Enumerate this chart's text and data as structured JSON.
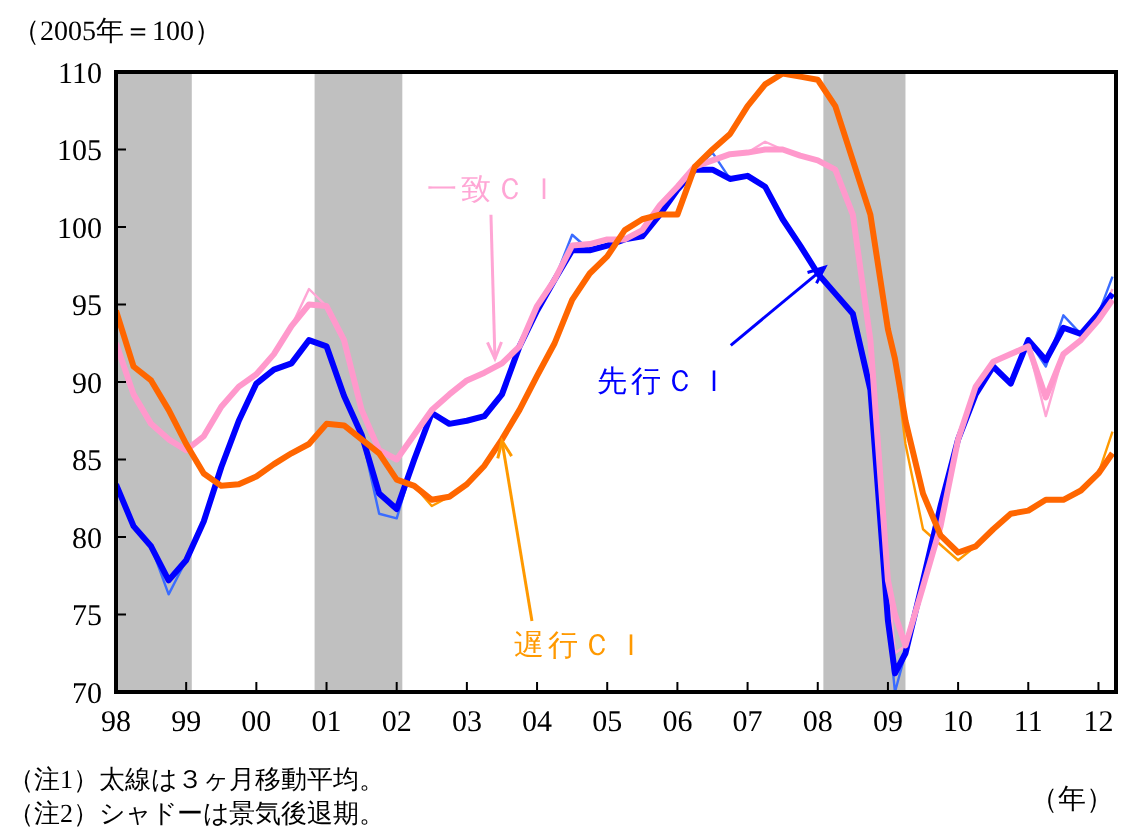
{
  "chart_data": {
    "type": "line",
    "ylabel": "（2005年＝100）",
    "xlabel": "（年）",
    "x": [
      1998,
      1998.25,
      1998.5,
      1998.75,
      1999,
      1999.25,
      1999.5,
      1999.75,
      2000,
      2000.25,
      2000.5,
      2000.75,
      2001,
      2001.25,
      2001.5,
      2001.75,
      2002,
      2002.25,
      2002.5,
      2002.75,
      2003,
      2003.25,
      2003.5,
      2003.75,
      2004,
      2004.25,
      2004.5,
      2004.75,
      2005,
      2005.25,
      2005.5,
      2005.75,
      2006,
      2006.25,
      2006.5,
      2006.75,
      2007,
      2007.25,
      2007.5,
      2007.75,
      2008,
      2008.25,
      2008.5,
      2008.75,
      2009,
      2009.1,
      2009.25,
      2009.5,
      2009.75,
      2010,
      2010.25,
      2010.5,
      2010.75,
      2011,
      2011.25,
      2011.5,
      2011.75,
      2012,
      2012.2
    ],
    "series": [
      {
        "color": "#0000ff",
        "values": [
          83.4,
          80.7,
          79.4,
          77.2,
          78.5,
          81,
          84.5,
          87.5,
          89.9,
          90.8,
          91.2,
          92.7,
          92.3,
          89.1,
          86.6,
          82.8,
          81.8,
          85,
          88,
          87.3,
          87.5,
          87.8,
          89.2,
          92.3,
          94.6,
          96.6,
          98.5,
          98.5,
          98.8,
          99.2,
          99.4,
          100.8,
          102.4,
          103.7,
          103.7,
          103.1,
          103.3,
          102.6,
          100.5,
          98.8,
          97,
          95.7,
          94.4,
          89.5,
          74.6,
          71.2,
          72.5,
          77.2,
          82,
          86.3,
          89.2,
          91,
          89.9,
          92.7,
          91.4,
          93.5,
          93.1,
          94.4,
          95.7
        ]
      },
      {
        "color": "#3a6cff",
        "values": [
          83.4,
          80.7,
          79.4,
          76.3,
          78.5,
          81,
          84.5,
          87.5,
          89.9,
          90.8,
          91.2,
          92.7,
          92.3,
          89.1,
          86.6,
          81.5,
          81.2,
          85,
          88,
          87.3,
          87.5,
          87.8,
          89.2,
          92.3,
          94.6,
          96.6,
          99.5,
          98.5,
          98.8,
          99.2,
          99.4,
          100.8,
          102.4,
          103.7,
          104.8,
          103.1,
          103.3,
          102.6,
          100.5,
          98.8,
          97,
          95.7,
          94.4,
          89.5,
          74.6,
          70,
          72.5,
          77.2,
          82,
          86.3,
          89.2,
          91,
          89.9,
          92.7,
          91,
          94.3,
          93.1,
          94.4,
          96.8
        ]
      },
      {
        "color": "#ff99cc",
        "values": [
          92.5,
          89.2,
          87.3,
          86.3,
          85.6,
          86.5,
          88.4,
          89.7,
          90.5,
          91.8,
          93.6,
          95,
          94.9,
          92.7,
          88.2,
          85.6,
          85,
          86.6,
          88.2,
          89.2,
          90.1,
          90.6,
          91.2,
          92.3,
          94.9,
          96.6,
          98.8,
          98.9,
          99.2,
          99.2,
          99.8,
          101.4,
          102.6,
          103.9,
          104.3,
          104.7,
          104.8,
          105,
          105,
          104.6,
          104.3,
          103.7,
          100.8,
          92.7,
          77.2,
          75,
          73,
          76.8,
          80.7,
          86.3,
          89.7,
          91.3,
          91.8,
          92.3,
          89,
          91.8,
          92.7,
          94,
          95.3
        ]
      },
      {
        "color": "#ffa6d5",
        "values": [
          92.5,
          89.2,
          87.3,
          86.3,
          85.6,
          86.5,
          88.4,
          89.7,
          90.5,
          91.8,
          93.6,
          96,
          94.9,
          92.7,
          88.2,
          85.6,
          85,
          86.6,
          88.2,
          89.2,
          90.1,
          90.6,
          91.2,
          92.3,
          94.9,
          96.6,
          98.8,
          98.9,
          99.2,
          99.2,
          99.8,
          101.4,
          102.6,
          103.9,
          104.3,
          104.7,
          104.8,
          105.5,
          105,
          104.6,
          104.3,
          103.7,
          100.8,
          92.7,
          77.2,
          72.5,
          73,
          76.8,
          80.7,
          86.3,
          89.7,
          91.3,
          91.8,
          92.3,
          87.8,
          91.8,
          92.7,
          94,
          96
        ]
      },
      {
        "color": "#ff6600",
        "values": [
          94.6,
          91,
          90.1,
          88.2,
          86,
          84.1,
          83.3,
          83.4,
          83.9,
          84.7,
          85.4,
          86,
          87.3,
          87.2,
          86.3,
          85.4,
          83.7,
          83.3,
          82.4,
          82.6,
          83.4,
          84.6,
          86.3,
          88.2,
          90.4,
          92.5,
          95.3,
          97,
          98.1,
          99.8,
          100.5,
          100.8,
          100.8,
          103.9,
          105,
          106,
          107.8,
          109.2,
          109.9,
          109.7,
          109.5,
          107.8,
          104.3,
          100.8,
          93.4,
          91.5,
          87.5,
          82.8,
          80.1,
          79,
          79.4,
          80.5,
          81.5,
          81.7,
          82.4,
          82.4,
          83,
          84.1,
          85.4
        ]
      },
      {
        "color": "#ff9900",
        "values": [
          94.6,
          91,
          90.1,
          88.2,
          86,
          84.1,
          83.3,
          83.4,
          83.9,
          84.7,
          85.4,
          86,
          87.3,
          87.2,
          86.3,
          85.4,
          83.7,
          83.3,
          82,
          82.6,
          83.4,
          84.6,
          86.3,
          88.2,
          90.4,
          92.5,
          95.3,
          97,
          98.1,
          99.8,
          100.5,
          100.8,
          100.8,
          103.9,
          105,
          106,
          107.8,
          109.2,
          110,
          109.7,
          109.5,
          107.8,
          104.3,
          100.8,
          93.4,
          91.5,
          86,
          80.5,
          79.5,
          78.5,
          79.4,
          80.5,
          81.5,
          81.7,
          82.4,
          82.4,
          83,
          84.1,
          86.8
        ]
      }
    ],
    "xlim": [
      1998,
      2012.25
    ],
    "xticks": [
      {
        "value": 1998,
        "label": "98"
      },
      {
        "value": 1999,
        "label": "99"
      },
      {
        "value": 2000,
        "label": "00"
      },
      {
        "value": 2001,
        "label": "01"
      },
      {
        "value": 2002,
        "label": "02"
      },
      {
        "value": 2003,
        "label": "03"
      },
      {
        "value": 2004,
        "label": "04"
      },
      {
        "value": 2005,
        "label": "05"
      },
      {
        "value": 2006,
        "label": "06"
      },
      {
        "value": 2007,
        "label": "07"
      },
      {
        "value": 2008,
        "label": "08"
      },
      {
        "value": 2009,
        "label": "09"
      },
      {
        "value": 2010,
        "label": "10"
      },
      {
        "value": 2011,
        "label": "11"
      },
      {
        "value": 2012,
        "label": "12"
      }
    ],
    "ylim": [
      70,
      110
    ],
    "yticks": [
      70,
      75,
      80,
      85,
      90,
      95,
      100,
      105,
      110
    ],
    "bands": [
      {
        "axis": "x",
        "from": 1998,
        "to": 1999.08,
        "color": "#c0c0c0"
      },
      {
        "axis": "x",
        "from": 2000.83,
        "to": 2002.08,
        "color": "#c0c0c0"
      },
      {
        "axis": "x",
        "from": 2008.08,
        "to": 2009.25,
        "color": "#c0c0c0"
      }
    ],
    "annotations": [
      {
        "text": "一致ＣＩ",
        "x": 2003.4,
        "y": 91.5
      },
      {
        "text": "先行ＣＩ",
        "x": 2008.1,
        "y": 97.4
      },
      {
        "text": "遅行ＣＩ",
        "x": 2003.5,
        "y": 86.2
      },
      "（注1）太線は３ヶ月移動平均。",
      "（注2）シャドーは景気後退期。"
    ],
    "grid": false,
    "legend": false,
    "marker": "none",
    "line_style": "solid"
  }
}
